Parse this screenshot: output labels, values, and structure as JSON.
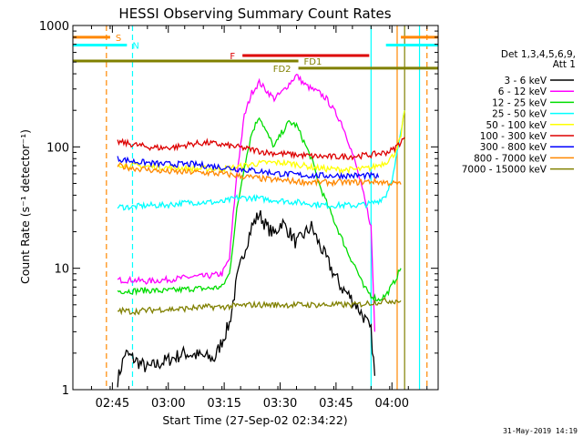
{
  "chart_data": {
    "type": "line",
    "title": "HESSI Observing Summary Count Rates",
    "xlabel": "Start Time (27-Sep-02 02:34:22)",
    "ylabel": "Count Rate (s⁻¹ detector⁻¹)",
    "ylog": true,
    "xlim_min": [
      2.0,
      4.0
    ],
    "xlim_min_note": "",
    "xlim": [
      0,
      98
    ],
    "ylim": [
      1,
      1000
    ],
    "xticks": [
      {
        "v": 10.6,
        "label": "02:45"
      },
      {
        "v": 25.6,
        "label": "03:00"
      },
      {
        "v": 40.6,
        "label": "03:15"
      },
      {
        "v": 55.6,
        "label": "03:30"
      },
      {
        "v": 70.6,
        "label": "03:45"
      },
      {
        "v": 85.6,
        "label": "04:00"
      }
    ],
    "yticks": [
      {
        "v": 1,
        "label": "1"
      },
      {
        "v": 10,
        "label": "10"
      },
      {
        "v": 100,
        "label": "100"
      },
      {
        "v": 1000,
        "label": "1000"
      }
    ],
    "legend": {
      "header": [
        "Det 1,3,4,5,6,9,",
        "Att 1"
      ],
      "placement": "right"
    },
    "series": [
      {
        "name": "3 - 6 keV",
        "color": "#000000",
        "points": [
          [
            12,
            1.2
          ],
          [
            14,
            2.0
          ],
          [
            20,
            1.5
          ],
          [
            30,
            2.0
          ],
          [
            38,
            1.8
          ],
          [
            42,
            3.5
          ],
          [
            44,
            8
          ],
          [
            46,
            14
          ],
          [
            48,
            22
          ],
          [
            50,
            28
          ],
          [
            52,
            22
          ],
          [
            54,
            19
          ],
          [
            56,
            24
          ],
          [
            58,
            20
          ],
          [
            60,
            16
          ],
          [
            62,
            19
          ],
          [
            64,
            22
          ],
          [
            66,
            16
          ],
          [
            68,
            12
          ],
          [
            70,
            9
          ],
          [
            72,
            7
          ],
          [
            74,
            6
          ],
          [
            76,
            5
          ],
          [
            78,
            4
          ],
          [
            80,
            3
          ],
          [
            81,
            1.3
          ]
        ]
      },
      {
        "name": "6 - 12 keV",
        "color": "#ff00ff",
        "points": [
          [
            12,
            8
          ],
          [
            16,
            8
          ],
          [
            20,
            7.8
          ],
          [
            24,
            8
          ],
          [
            28,
            8.2
          ],
          [
            32,
            8.5
          ],
          [
            36,
            8.6
          ],
          [
            40,
            9
          ],
          [
            42,
            12
          ],
          [
            44,
            60
          ],
          [
            46,
            180
          ],
          [
            48,
            280
          ],
          [
            50,
            340
          ],
          [
            52,
            290
          ],
          [
            54,
            250
          ],
          [
            56,
            280
          ],
          [
            58,
            330
          ],
          [
            60,
            390
          ],
          [
            62,
            330
          ],
          [
            64,
            300
          ],
          [
            66,
            280
          ],
          [
            68,
            250
          ],
          [
            70,
            200
          ],
          [
            72,
            160
          ],
          [
            74,
            110
          ],
          [
            76,
            70
          ],
          [
            78,
            40
          ],
          [
            80,
            22
          ],
          [
            81,
            3
          ]
        ]
      },
      {
        "name": "12 - 25 keV",
        "color": "#00dd00",
        "points": [
          [
            12,
            6.5
          ],
          [
            16,
            6.5
          ],
          [
            20,
            6.6
          ],
          [
            24,
            6.5
          ],
          [
            28,
            6.6
          ],
          [
            32,
            6.8
          ],
          [
            36,
            6.8
          ],
          [
            40,
            7
          ],
          [
            42,
            9
          ],
          [
            44,
            30
          ],
          [
            46,
            70
          ],
          [
            48,
            130
          ],
          [
            50,
            180
          ],
          [
            52,
            130
          ],
          [
            54,
            100
          ],
          [
            56,
            130
          ],
          [
            58,
            160
          ],
          [
            60,
            150
          ],
          [
            62,
            110
          ],
          [
            64,
            80
          ],
          [
            66,
            50
          ],
          [
            68,
            35
          ],
          [
            70,
            25
          ],
          [
            72,
            18
          ],
          [
            74,
            13
          ],
          [
            76,
            10
          ],
          [
            78,
            7
          ],
          [
            80,
            6
          ],
          [
            82,
            5.5
          ],
          [
            84,
            6
          ],
          [
            86,
            7.5
          ],
          [
            88,
            10
          ]
        ]
      },
      {
        "name": "25 - 50 keV",
        "color": "#00ffff",
        "points": [
          [
            12,
            32
          ],
          [
            16,
            32
          ],
          [
            20,
            33
          ],
          [
            24,
            33
          ],
          [
            28,
            34
          ],
          [
            32,
            35
          ],
          [
            36,
            35
          ],
          [
            40,
            35
          ],
          [
            44,
            38
          ],
          [
            48,
            38
          ],
          [
            52,
            37
          ],
          [
            56,
            36
          ],
          [
            60,
            35
          ],
          [
            64,
            34
          ],
          [
            68,
            33
          ],
          [
            72,
            33
          ],
          [
            76,
            33
          ],
          [
            80,
            34
          ],
          [
            82,
            36
          ],
          [
            84,
            40
          ],
          [
            86,
            60
          ],
          [
            88,
            130
          ],
          [
            89,
            200
          ]
        ]
      },
      {
        "name": "50 - 100 keV",
        "color": "#ffff00",
        "points": [
          [
            12,
            72
          ],
          [
            16,
            70
          ],
          [
            20,
            69
          ],
          [
            24,
            68
          ],
          [
            28,
            67
          ],
          [
            32,
            66
          ],
          [
            36,
            66
          ],
          [
            40,
            66
          ],
          [
            44,
            68
          ],
          [
            48,
            72
          ],
          [
            52,
            74
          ],
          [
            56,
            74
          ],
          [
            60,
            72
          ],
          [
            64,
            68
          ],
          [
            68,
            66
          ],
          [
            72,
            65
          ],
          [
            76,
            65
          ],
          [
            80,
            67
          ],
          [
            84,
            75
          ],
          [
            86,
            85
          ],
          [
            88,
            120
          ],
          [
            89,
            200
          ]
        ]
      },
      {
        "name": "100 - 300 keV",
        "color": "#dd0000",
        "points": [
          [
            12,
            110
          ],
          [
            16,
            105
          ],
          [
            20,
            100
          ],
          [
            24,
            98
          ],
          [
            28,
            100
          ],
          [
            32,
            106
          ],
          [
            36,
            108
          ],
          [
            40,
            104
          ],
          [
            44,
            100
          ],
          [
            48,
            95
          ],
          [
            52,
            90
          ],
          [
            56,
            88
          ],
          [
            60,
            86
          ],
          [
            64,
            84
          ],
          [
            68,
            83
          ],
          [
            72,
            83
          ],
          [
            76,
            84
          ],
          [
            80,
            86
          ],
          [
            84,
            90
          ],
          [
            86,
            95
          ],
          [
            88,
            110
          ],
          [
            89,
            120
          ]
        ]
      },
      {
        "name": "300 - 800 keV",
        "color": "#0000ff",
        "points": [
          [
            12,
            80
          ],
          [
            16,
            76
          ],
          [
            20,
            74
          ],
          [
            24,
            72
          ],
          [
            28,
            72
          ],
          [
            32,
            72
          ],
          [
            36,
            70
          ],
          [
            40,
            68
          ],
          [
            44,
            66
          ],
          [
            48,
            64
          ],
          [
            52,
            62
          ],
          [
            56,
            60
          ],
          [
            60,
            59
          ],
          [
            64,
            58
          ],
          [
            68,
            58
          ],
          [
            72,
            58
          ],
          [
            76,
            58
          ],
          [
            80,
            58
          ],
          [
            82,
            56
          ]
        ]
      },
      {
        "name": "800 - 7000 keV",
        "color": "#ff8800",
        "points": [
          [
            12,
            70
          ],
          [
            16,
            67
          ],
          [
            20,
            65
          ],
          [
            24,
            63
          ],
          [
            28,
            62
          ],
          [
            32,
            62
          ],
          [
            36,
            61
          ],
          [
            40,
            60
          ],
          [
            44,
            58
          ],
          [
            48,
            56
          ],
          [
            52,
            54
          ],
          [
            56,
            53
          ],
          [
            60,
            52
          ],
          [
            64,
            51
          ],
          [
            68,
            51
          ],
          [
            72,
            51
          ],
          [
            76,
            51
          ],
          [
            80,
            52
          ],
          [
            84,
            51
          ],
          [
            86,
            50
          ],
          [
            88,
            49
          ]
        ]
      },
      {
        "name": "7000 - 15000 keV",
        "color": "#808000",
        "points": [
          [
            12,
            4.5
          ],
          [
            16,
            4.4
          ],
          [
            20,
            4.5
          ],
          [
            24,
            4.6
          ],
          [
            28,
            4.6
          ],
          [
            32,
            4.7
          ],
          [
            36,
            4.8
          ],
          [
            40,
            4.8
          ],
          [
            44,
            4.9
          ],
          [
            48,
            5
          ],
          [
            52,
            5
          ],
          [
            56,
            5
          ],
          [
            60,
            5
          ],
          [
            64,
            5
          ],
          [
            68,
            5
          ],
          [
            72,
            5
          ],
          [
            76,
            5
          ],
          [
            80,
            5.2
          ],
          [
            84,
            5.4
          ],
          [
            88,
            5.4
          ]
        ]
      }
    ],
    "annotations": {
      "bars": [
        {
          "label": "S",
          "color": "#ff8800",
          "x1": 0,
          "x2": 10,
          "y": 800,
          "x1b": 88,
          "x2b": 98
        },
        {
          "label": "N",
          "color": "#00ffff",
          "x1": 0,
          "x2": 14.5,
          "y": 690,
          "x1b": 84,
          "x2b": 98
        },
        {
          "label": "F",
          "color": "#dd0000",
          "x1": 45.5,
          "x2": 79.5,
          "y": 565
        },
        {
          "label": "FD1",
          "color": "#808000",
          "x1": 0,
          "x2": 60.5,
          "y": 510
        },
        {
          "label": "FD2",
          "color": "#808000",
          "x1": 60.5,
          "x2": 98,
          "y": 445
        }
      ],
      "vlines": [
        {
          "x": 9,
          "color": "#ff8800",
          "dash": true
        },
        {
          "x": 16,
          "color": "#00ffff",
          "dash": true
        },
        {
          "x": 80,
          "color": "#00ffff",
          "dash": false
        },
        {
          "x": 87,
          "color": "#ff8800",
          "dash": false
        },
        {
          "x": 89,
          "color": "#808000",
          "dash": false
        },
        {
          "x": 93,
          "color": "#00ffff",
          "dash": false
        },
        {
          "x": 95,
          "color": "#ff8800",
          "dash": true
        }
      ]
    },
    "timestamp": "31-May-2019 14:19"
  }
}
